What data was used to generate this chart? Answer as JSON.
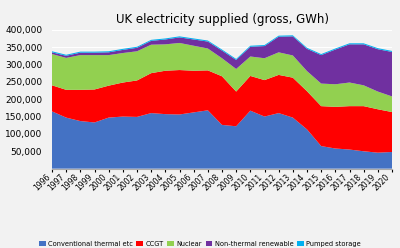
{
  "title": "UK electricity supplied (gross, GWh)",
  "years": [
    1996,
    1997,
    1998,
    1999,
    2000,
    2001,
    2002,
    2003,
    2004,
    2005,
    2006,
    2007,
    2008,
    2009,
    2010,
    2011,
    2012,
    2013,
    2014,
    2015,
    2016,
    2017,
    2018,
    2019,
    2020
  ],
  "conventional_thermal": [
    165000,
    147000,
    137000,
    133000,
    147000,
    150000,
    149000,
    160000,
    157000,
    156000,
    162000,
    168000,
    126000,
    122000,
    167000,
    150000,
    160000,
    147000,
    113000,
    65000,
    58000,
    55000,
    50000,
    46000,
    48000
  ],
  "ccgt": [
    75000,
    80000,
    90000,
    95000,
    92000,
    98000,
    105000,
    115000,
    125000,
    128000,
    120000,
    115000,
    140000,
    100000,
    100000,
    105000,
    110000,
    115000,
    110000,
    115000,
    120000,
    125000,
    130000,
    125000,
    115000
  ],
  "nuclear": [
    90000,
    92000,
    100000,
    99000,
    88000,
    85000,
    84000,
    82000,
    76000,
    78000,
    72000,
    63000,
    52000,
    65000,
    56000,
    63000,
    65000,
    64000,
    58000,
    65000,
    65000,
    68000,
    60000,
    51000,
    45000
  ],
  "non_thermal_renewable": [
    5000,
    6000,
    7000,
    7000,
    8000,
    9000,
    10000,
    11000,
    14000,
    16000,
    18000,
    20000,
    22000,
    26000,
    28000,
    35000,
    45000,
    55000,
    64000,
    82000,
    100000,
    110000,
    118000,
    122000,
    128000
  ],
  "pumped_storage": [
    3000,
    3000,
    3000,
    3000,
    3000,
    3000,
    3000,
    3000,
    3000,
    3000,
    3000,
    3000,
    3000,
    3000,
    3000,
    3000,
    3000,
    3000,
    3000,
    3000,
    3000,
    3000,
    3000,
    3000,
    3000
  ],
  "colors": {
    "conventional_thermal": "#4472c4",
    "ccgt": "#ff0000",
    "nuclear": "#92d050",
    "non_thermal_renewable": "#7030a0",
    "pumped_storage": "#00b0f0"
  },
  "legend_labels": [
    "Conventional thermal etc",
    "CCGT",
    "Nuclear",
    "Non-thermal renewable",
    "Pumped storage"
  ],
  "ylim": [
    0,
    400000
  ],
  "yticks": [
    50000,
    100000,
    150000,
    200000,
    250000,
    300000,
    350000,
    400000
  ],
  "bg_color": "#f2f2f2",
  "grid_color": "#ffffff"
}
